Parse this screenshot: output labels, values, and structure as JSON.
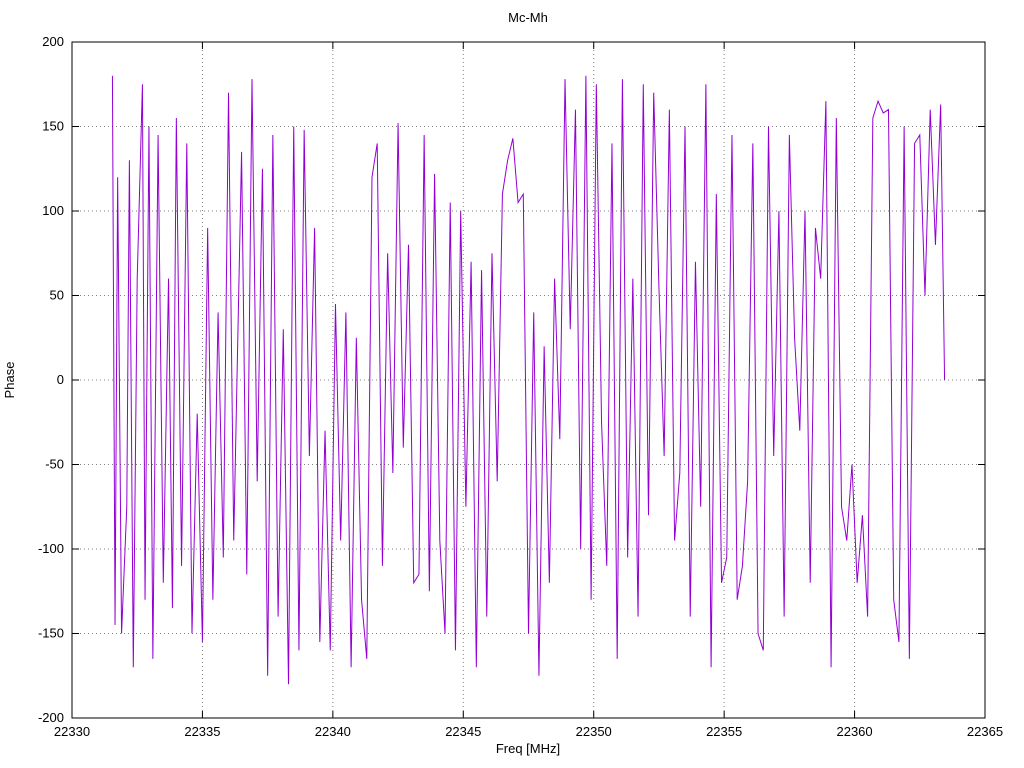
{
  "chart_data": {
    "type": "line",
    "title": "Mc-Mh",
    "xlabel": "Freq [MHz]",
    "ylabel": "Phase",
    "xlim": [
      22330,
      22365
    ],
    "ylim": [
      -200,
      200
    ],
    "xticks": [
      22330,
      22335,
      22340,
      22345,
      22350,
      22355,
      22360,
      22365
    ],
    "yticks": [
      -200,
      -150,
      -100,
      -50,
      0,
      50,
      100,
      150,
      200
    ],
    "grid": "dotted",
    "legend": "none",
    "line_color": "#9400d3",
    "series_name": "Mc-Mh phase",
    "points": [
      [
        22331.55,
        180
      ],
      [
        22331.65,
        -145
      ],
      [
        22331.75,
        120
      ],
      [
        22331.9,
        -150
      ],
      [
        22332.1,
        -75
      ],
      [
        22332.2,
        130
      ],
      [
        22332.35,
        -170
      ],
      [
        22332.5,
        60
      ],
      [
        22332.7,
        175
      ],
      [
        22332.8,
        -130
      ],
      [
        22332.95,
        150
      ],
      [
        22333.1,
        -165
      ],
      [
        22333.3,
        145
      ],
      [
        22333.5,
        -120
      ],
      [
        22333.7,
        60
      ],
      [
        22333.85,
        -135
      ],
      [
        22334.0,
        155
      ],
      [
        22334.2,
        -110
      ],
      [
        22334.4,
        140
      ],
      [
        22334.6,
        -150
      ],
      [
        22334.8,
        -20
      ],
      [
        22335.0,
        -155
      ],
      [
        22335.2,
        90
      ],
      [
        22335.4,
        -130
      ],
      [
        22335.6,
        40
      ],
      [
        22335.8,
        -105
      ],
      [
        22336.0,
        170
      ],
      [
        22336.2,
        -95
      ],
      [
        22336.5,
        135
      ],
      [
        22336.7,
        -115
      ],
      [
        22336.9,
        178
      ],
      [
        22337.1,
        -60
      ],
      [
        22337.3,
        125
      ],
      [
        22337.5,
        -175
      ],
      [
        22337.7,
        145
      ],
      [
        22337.9,
        -140
      ],
      [
        22338.1,
        30
      ],
      [
        22338.3,
        -180
      ],
      [
        22338.5,
        150
      ],
      [
        22338.7,
        -160
      ],
      [
        22338.9,
        148
      ],
      [
        22339.1,
        -45
      ],
      [
        22339.3,
        90
      ],
      [
        22339.5,
        -155
      ],
      [
        22339.7,
        -30
      ],
      [
        22339.9,
        -160
      ],
      [
        22340.1,
        45
      ],
      [
        22340.3,
        -95
      ],
      [
        22340.5,
        40
      ],
      [
        22340.7,
        -170
      ],
      [
        22340.9,
        25
      ],
      [
        22341.1,
        -130
      ],
      [
        22341.3,
        -165
      ],
      [
        22341.5,
        120
      ],
      [
        22341.7,
        140
      ],
      [
        22341.9,
        -110
      ],
      [
        22342.1,
        75
      ],
      [
        22342.3,
        -55
      ],
      [
        22342.5,
        152
      ],
      [
        22342.7,
        -40
      ],
      [
        22342.9,
        80
      ],
      [
        22343.1,
        -120
      ],
      [
        22343.3,
        -115
      ],
      [
        22343.5,
        145
      ],
      [
        22343.7,
        -125
      ],
      [
        22343.9,
        122
      ],
      [
        22344.1,
        -95
      ],
      [
        22344.3,
        -150
      ],
      [
        22344.5,
        105
      ],
      [
        22344.7,
        -160
      ],
      [
        22344.9,
        100
      ],
      [
        22345.1,
        -75
      ],
      [
        22345.3,
        70
      ],
      [
        22345.5,
        -170
      ],
      [
        22345.7,
        65
      ],
      [
        22345.9,
        -140
      ],
      [
        22346.1,
        75
      ],
      [
        22346.3,
        -60
      ],
      [
        22346.5,
        110
      ],
      [
        22346.7,
        130
      ],
      [
        22346.9,
        143
      ],
      [
        22347.1,
        105
      ],
      [
        22347.3,
        110
      ],
      [
        22347.5,
        -150
      ],
      [
        22347.7,
        40
      ],
      [
        22347.9,
        -175
      ],
      [
        22348.1,
        20
      ],
      [
        22348.3,
        -120
      ],
      [
        22348.5,
        60
      ],
      [
        22348.7,
        -35
      ],
      [
        22348.9,
        178
      ],
      [
        22349.1,
        30
      ],
      [
        22349.3,
        160
      ],
      [
        22349.5,
        -100
      ],
      [
        22349.7,
        180
      ],
      [
        22349.9,
        -130
      ],
      [
        22350.1,
        175
      ],
      [
        22350.3,
        -25
      ],
      [
        22350.5,
        -110
      ],
      [
        22350.7,
        140
      ],
      [
        22350.9,
        -165
      ],
      [
        22351.1,
        178
      ],
      [
        22351.3,
        -105
      ],
      [
        22351.5,
        60
      ],
      [
        22351.7,
        -140
      ],
      [
        22351.9,
        175
      ],
      [
        22352.1,
        -80
      ],
      [
        22352.3,
        170
      ],
      [
        22352.5,
        55
      ],
      [
        22352.7,
        -45
      ],
      [
        22352.9,
        160
      ],
      [
        22353.1,
        -95
      ],
      [
        22353.3,
        -55
      ],
      [
        22353.5,
        150
      ],
      [
        22353.7,
        -140
      ],
      [
        22353.9,
        70
      ],
      [
        22354.1,
        -75
      ],
      [
        22354.3,
        175
      ],
      [
        22354.5,
        -170
      ],
      [
        22354.7,
        110
      ],
      [
        22354.9,
        -120
      ],
      [
        22355.1,
        -105
      ],
      [
        22355.3,
        145
      ],
      [
        22355.5,
        -130
      ],
      [
        22355.7,
        -110
      ],
      [
        22355.9,
        -60
      ],
      [
        22356.1,
        140
      ],
      [
        22356.3,
        -150
      ],
      [
        22356.5,
        -160
      ],
      [
        22356.7,
        150
      ],
      [
        22356.9,
        -45
      ],
      [
        22357.1,
        100
      ],
      [
        22357.3,
        -140
      ],
      [
        22357.5,
        145
      ],
      [
        22357.7,
        25
      ],
      [
        22357.9,
        -30
      ],
      [
        22358.1,
        100
      ],
      [
        22358.3,
        -120
      ],
      [
        22358.5,
        90
      ],
      [
        22358.7,
        60
      ],
      [
        22358.9,
        165
      ],
      [
        22359.1,
        -170
      ],
      [
        22359.3,
        155
      ],
      [
        22359.5,
        -75
      ],
      [
        22359.7,
        -95
      ],
      [
        22359.9,
        -50
      ],
      [
        22360.1,
        -120
      ],
      [
        22360.3,
        -80
      ],
      [
        22360.5,
        -140
      ],
      [
        22360.7,
        155
      ],
      [
        22360.9,
        165
      ],
      [
        22361.1,
        158
      ],
      [
        22361.3,
        160
      ],
      [
        22361.5,
        -130
      ],
      [
        22361.7,
        -155
      ],
      [
        22361.9,
        150
      ],
      [
        22362.1,
        -165
      ],
      [
        22362.3,
        140
      ],
      [
        22362.5,
        145
      ],
      [
        22362.7,
        50
      ],
      [
        22362.9,
        160
      ],
      [
        22363.1,
        80
      ],
      [
        22363.3,
        163
      ],
      [
        22363.45,
        0
      ]
    ]
  }
}
